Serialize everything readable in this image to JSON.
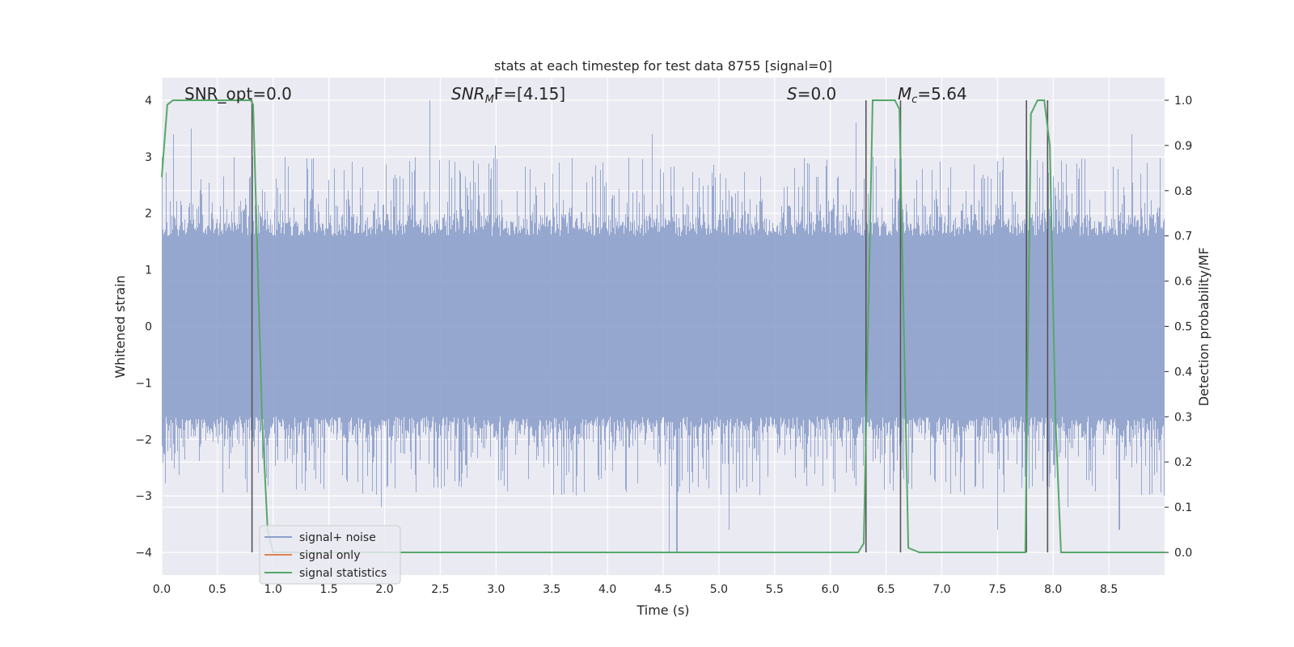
{
  "chart_data": {
    "type": "line",
    "title": "stats at each timestep for test data 8755 [signal=0]",
    "xlabel": "Time (s)",
    "ylabel_left": "Whitened strain",
    "ylabel_right": "Detection probability/MF",
    "xlim": [
      0.0,
      9.0
    ],
    "ylim_left": [
      -4.4,
      4.4
    ],
    "ylim_right": [
      -0.05,
      1.05
    ],
    "xticks": [
      "0.0",
      "0.5",
      "1.0",
      "1.5",
      "2.0",
      "2.5",
      "3.0",
      "3.5",
      "4.0",
      "4.5",
      "5.0",
      "5.5",
      "6.0",
      "6.5",
      "7.0",
      "7.5",
      "8.0",
      "8.5"
    ],
    "yticks_left": [
      "−4",
      "−3",
      "−2",
      "−1",
      "0",
      "1",
      "2",
      "3",
      "4"
    ],
    "yticks_right": [
      "0.0",
      "0.1",
      "0.2",
      "0.3",
      "0.4",
      "0.5",
      "0.6",
      "0.7",
      "0.8",
      "0.9",
      "1.0"
    ],
    "grid": true,
    "legend_position": "lower-left",
    "annotations": {
      "snr_opt": "SNR_opt=0.0",
      "snr_mf_name": "SNR",
      "snr_mf_sub": "M",
      "snr_mf_rest": "F=[4.15]",
      "s_name": "S",
      "s_rest": "=0.0",
      "mc_name": "M",
      "mc_sub": "c",
      "mc_rest": "=5.64"
    },
    "vertical_markers_x": [
      0.81,
      6.32,
      6.63,
      7.76,
      7.95
    ],
    "series": [
      {
        "name": "signal+ noise",
        "color": "#8da0cb",
        "axis": "left",
        "noise_envelope": {
          "core_abs": 1.6,
          "typical_peak_abs": 2.5,
          "max_peaks": [
            {
              "x": 0.1,
              "y": 3.4
            },
            {
              "x": 0.26,
              "y": 3.5
            },
            {
              "x": 0.81,
              "y": 3.0
            },
            {
              "x": 2.4,
              "y": 4.0
            },
            {
              "x": 1.97,
              "y": -3.2
            },
            {
              "x": 2.99,
              "y": 3.2
            },
            {
              "x": 4.55,
              "y": -4.0
            },
            {
              "x": 4.62,
              "y": -4.0
            },
            {
              "x": 5.09,
              "y": -3.6
            },
            {
              "x": 7.5,
              "y": -3.6
            },
            {
              "x": 8.13,
              "y": -3.2
            },
            {
              "x": 8.59,
              "y": -3.6
            },
            {
              "x": 8.7,
              "y": 3.4
            },
            {
              "x": 4.4,
              "y": 3.4
            },
            {
              "x": 6.23,
              "y": 3.6
            }
          ]
        }
      },
      {
        "name": "signal only",
        "color": "#dd8452",
        "axis": "left",
        "x": [
          0.0,
          9.0
        ],
        "y": [
          0.0,
          0.0
        ]
      },
      {
        "name": "signal statistics",
        "color": "#55a868",
        "axis": "right",
        "x": [
          0.0,
          0.05,
          0.1,
          0.2,
          0.4,
          0.6,
          0.8,
          0.82,
          0.9,
          0.95,
          1.0,
          1.2,
          2.0,
          3.0,
          4.0,
          5.0,
          6.0,
          6.25,
          6.3,
          6.38,
          6.5,
          6.58,
          6.62,
          6.7,
          6.8,
          7.0,
          7.5,
          7.75,
          7.8,
          7.86,
          7.92,
          7.97,
          8.02,
          8.07,
          8.2,
          8.3,
          8.5,
          9.0
        ],
        "y": [
          0.83,
          0.99,
          1.0,
          1.0,
          1.0,
          1.0,
          1.0,
          0.99,
          0.3,
          0.05,
          0.0,
          0.0,
          0.0,
          0.0,
          0.0,
          0.0,
          0.0,
          0.0,
          0.02,
          1.0,
          1.0,
          1.0,
          0.98,
          0.01,
          0.0,
          0.0,
          0.0,
          0.0,
          0.97,
          1.0,
          1.0,
          0.9,
          0.3,
          0.0,
          0.0,
          0.0,
          0.0,
          0.0
        ]
      }
    ]
  }
}
